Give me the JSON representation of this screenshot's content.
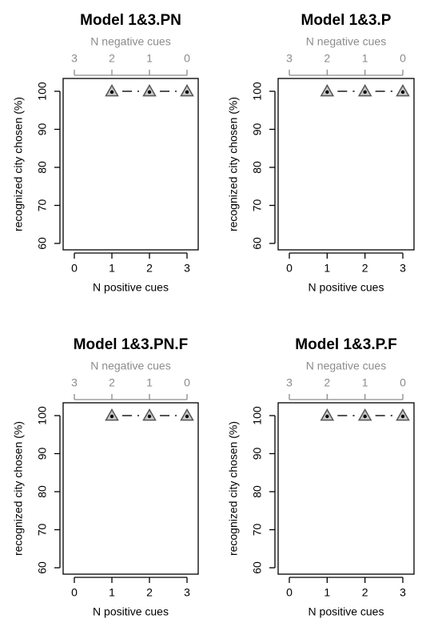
{
  "chart_data": [
    {
      "type": "line",
      "title": "Model 1&3.PN",
      "xlabel": "N positive cues",
      "ylabel": "recognized city chosen (%)",
      "top_xlabel": "N negative cues",
      "x_ticks": [
        "0",
        "1",
        "2",
        "3"
      ],
      "top_ticks": [
        "3",
        "2",
        "1",
        "0"
      ],
      "y_ticks": [
        "60",
        "70",
        "80",
        "90",
        "100"
      ],
      "xlim": [
        0,
        3
      ],
      "ylim": [
        60,
        100
      ],
      "x": [
        1,
        2,
        3
      ],
      "values": [
        100,
        100,
        100
      ]
    },
    {
      "type": "line",
      "title": "Model 1&3.P",
      "xlabel": "N positive cues",
      "ylabel": "recognized city chosen (%)",
      "top_xlabel": "N negative cues",
      "x_ticks": [
        "0",
        "1",
        "2",
        "3"
      ],
      "top_ticks": [
        "3",
        "2",
        "1",
        "0"
      ],
      "y_ticks": [
        "60",
        "70",
        "80",
        "90",
        "100"
      ],
      "xlim": [
        0,
        3
      ],
      "ylim": [
        60,
        100
      ],
      "x": [
        1,
        2,
        3
      ],
      "values": [
        100,
        100,
        100
      ]
    },
    {
      "type": "line",
      "title": "Model 1&3.PN.F",
      "xlabel": "N positive cues",
      "ylabel": "recognized city chosen (%)",
      "top_xlabel": "N negative cues",
      "x_ticks": [
        "0",
        "1",
        "2",
        "3"
      ],
      "top_ticks": [
        "3",
        "2",
        "1",
        "0"
      ],
      "y_ticks": [
        "60",
        "70",
        "80",
        "90",
        "100"
      ],
      "xlim": [
        0,
        3
      ],
      "ylim": [
        60,
        100
      ],
      "x": [
        1,
        2,
        3
      ],
      "values": [
        100,
        100,
        100
      ]
    },
    {
      "type": "line",
      "title": "Model 1&3.P.F",
      "xlabel": "N positive cues",
      "ylabel": "recognized city chosen (%)",
      "top_xlabel": "N negative cues",
      "x_ticks": [
        "0",
        "1",
        "2",
        "3"
      ],
      "top_ticks": [
        "3",
        "2",
        "1",
        "0"
      ],
      "y_ticks": [
        "60",
        "70",
        "80",
        "90",
        "100"
      ],
      "xlim": [
        0,
        3
      ],
      "ylim": [
        60,
        100
      ],
      "x": [
        1,
        2,
        3
      ],
      "values": [
        100,
        100,
        100
      ]
    }
  ],
  "colors": {
    "axis": "#000000",
    "top_axis": "#8c8c8c",
    "marker_fill": "#c8c8c8",
    "marker_stroke": "#555555",
    "line": "#555555",
    "dot": "#000000"
  }
}
